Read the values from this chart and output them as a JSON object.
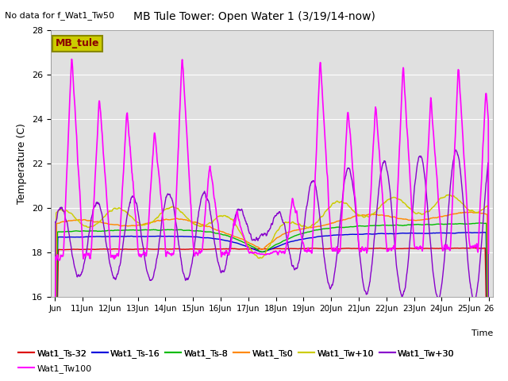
{
  "title": "MB Tule Tower: Open Water 1 (3/19/14-now)",
  "subtitle": "No data for f_Wat1_Tw50",
  "xlabel": "Time",
  "ylabel": "Temperature (C)",
  "ylim": [
    16,
    28
  ],
  "yticks": [
    16,
    18,
    20,
    22,
    24,
    26,
    28
  ],
  "x_tick_labels": [
    "Jun",
    "11Jun",
    "12Jun",
    "13Jun",
    "14Jun",
    "15Jun",
    "16Jun",
    "17Jun",
    "18Jun",
    "19Jun",
    "20Jun",
    "21Jun",
    "22Jun",
    "23Jun",
    "24Jun",
    "25Jun",
    "26"
  ],
  "plot_bg_color": "#e0e0e0",
  "legend_box_color": "#cccc00",
  "legend_box_text": "MB_tule",
  "legend_box_text_color": "#8b0000",
  "series": {
    "Wat1_Ts-32": {
      "color": "#dd0000",
      "linewidth": 1.0
    },
    "Wat1_Ts-16": {
      "color": "#0000dd",
      "linewidth": 1.0
    },
    "Wat1_Ts-8": {
      "color": "#00bb00",
      "linewidth": 1.0
    },
    "Wat1_Ts0": {
      "color": "#ff8800",
      "linewidth": 1.0
    },
    "Wat1_Tw+10": {
      "color": "#cccc00",
      "linewidth": 1.0
    },
    "Wat1_Tw+30": {
      "color": "#8800cc",
      "linewidth": 1.0
    },
    "Wat1_Tw100": {
      "color": "#ff00ff",
      "linewidth": 1.2
    }
  },
  "n_points": 1500,
  "seed": 42
}
